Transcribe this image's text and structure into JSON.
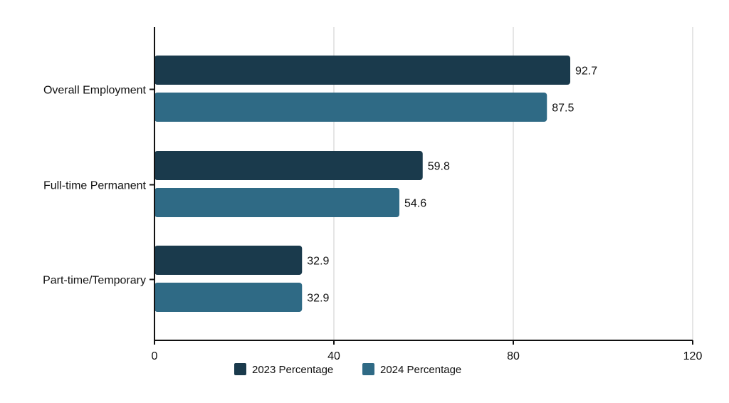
{
  "chart_data": {
    "type": "bar",
    "orientation": "horizontal",
    "categories": [
      "Overall Employment",
      "Full-time Permanent",
      "Part-time/Temporary"
    ],
    "series": [
      {
        "name": "2023 Percentage",
        "color": "#1a3a4c",
        "values": [
          92.7,
          59.8,
          32.9
        ]
      },
      {
        "name": "2024 Percentage",
        "color": "#2f6a85",
        "values": [
          87.5,
          54.6,
          32.9
        ]
      }
    ],
    "xlim": [
      0,
      120
    ],
    "xticks": [
      0,
      40,
      80,
      120
    ],
    "grid": "vertical",
    "legend_position": "bottom",
    "data_labels": true
  }
}
